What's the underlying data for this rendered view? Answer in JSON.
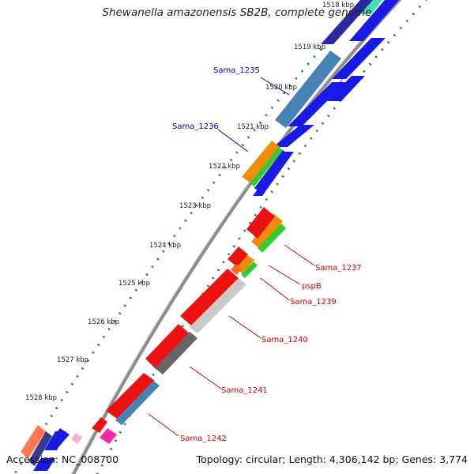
{
  "title": "Shewanella amazonensis SB2B, complete genome",
  "accession": "Accession: NC_008700",
  "summary": "Topology: circular; Length: 4,306,142 bp; Genes: 3,774",
  "colors": {
    "forward_label": "#0000aa",
    "reverse_label": "#cc0000",
    "backbone": "#8c8c8c",
    "dotted_track": "#1a8a1a"
  },
  "ticks": [
    "1518 kbp",
    "1519 kbp",
    "1520 kbp",
    "1521 kbp",
    "1522 kbp",
    "1523 kbp",
    "1524 kbp",
    "1525 kbp",
    "1526 kbp",
    "1527 kbp",
    "1528 kbp"
  ],
  "gene_labels": [
    {
      "text": "Sama_1235",
      "strand": "forward"
    },
    {
      "text": "Sama_1236",
      "strand": "forward"
    },
    {
      "text": "Sama_1237",
      "strand": "reverse"
    },
    {
      "text": "pspB",
      "strand": "reverse"
    },
    {
      "text": "Sama_1239",
      "strand": "reverse"
    },
    {
      "text": "Sama_1240",
      "strand": "reverse"
    },
    {
      "text": "Sama_1241",
      "strand": "reverse"
    },
    {
      "text": "Sama_1242",
      "strand": "reverse"
    }
  ]
}
